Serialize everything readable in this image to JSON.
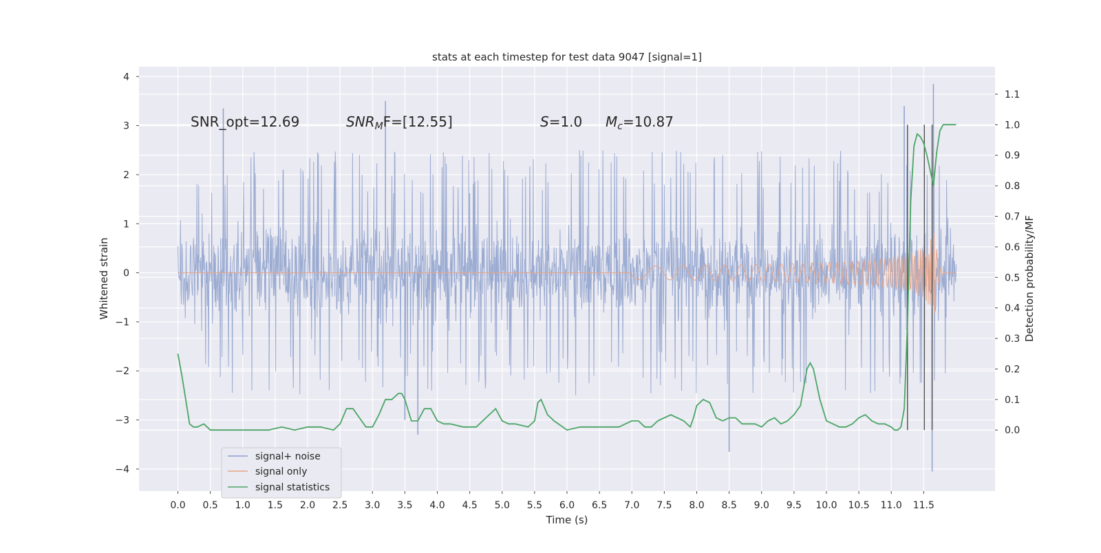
{
  "chart_data": {
    "type": "line",
    "title": "stats at each timestep for test data 9047 [signal=1]",
    "xlabel": "Time (s)",
    "ylabel": "Whitened strain",
    "ylabel_right": "Detection probability/MF",
    "xlim": [
      -0.6,
      12.6
    ],
    "ylim": [
      -4.45,
      4.2
    ],
    "ylim_right": [
      -0.2,
      1.19
    ],
    "x_ticks": [
      "0.0",
      "0.5",
      "1.0",
      "1.5",
      "2.0",
      "2.5",
      "3.0",
      "3.5",
      "4.0",
      "4.5",
      "5.0",
      "5.5",
      "6.0",
      "6.5",
      "7.0",
      "7.5",
      "8.0",
      "8.5",
      "9.0",
      "9.5",
      "10.0",
      "10.5",
      "11.0",
      "11.5"
    ],
    "y_ticks": [
      "4",
      "3",
      "2",
      "1",
      "0",
      "−1",
      "−2",
      "−3",
      "−4"
    ],
    "y_ticks_right": [
      "1.1",
      "1.0",
      "0.9",
      "0.8",
      "0.7",
      "0.6",
      "0.5",
      "0.4",
      "0.3",
      "0.2",
      "0.1",
      "0.0"
    ],
    "grid": true,
    "legend_position": "lower-left",
    "annotations": {
      "snr_opt": "SNR_opt=12.69",
      "snr_mf_sym": "SNR",
      "snr_mf_sub": "M",
      "snr_mf_tail": "F=[12.55]",
      "s_sym": "S",
      "s_value": "=1.0",
      "mc_sym": "M",
      "mc_sub": "c",
      "mc_value": "=10.87"
    },
    "vertical_markers": [
      11.25,
      11.51,
      11.63
    ],
    "series": [
      {
        "name": "signal+ noise",
        "color": "#8da0cb",
        "envelope": {
          "t_start": 0.0,
          "t_end": 12.0,
          "typical_band": [
            -1.9,
            2.2
          ],
          "extreme_peaks": [
            {
              "t": 0.7,
              "y": 3.35
            },
            {
              "t": 3.2,
              "y": 3.5
            },
            {
              "t": 3.5,
              "y": -3.0
            },
            {
              "t": 3.7,
              "y": -3.3
            },
            {
              "t": 8.5,
              "y": -3.65
            },
            {
              "t": 11.2,
              "y": 3.4
            },
            {
              "t": 11.65,
              "y": 3.85
            },
            {
              "t": 11.63,
              "y": -4.05
            }
          ]
        }
      },
      {
        "name": "signal only",
        "color": "#e8a488",
        "chirp": {
          "t_start": 7.0,
          "t_merger": 11.67,
          "peak_amplitude": 1.05
        }
      },
      {
        "name": "signal statistics",
        "color": "#4aa564",
        "axis": "right",
        "x": [
          0.0,
          0.06,
          0.12,
          0.18,
          0.24,
          0.3,
          0.4,
          0.5,
          0.6,
          0.8,
          1.0,
          1.2,
          1.4,
          1.6,
          1.8,
          2.0,
          2.2,
          2.4,
          2.5,
          2.6,
          2.7,
          2.8,
          2.9,
          3.0,
          3.1,
          3.2,
          3.3,
          3.4,
          3.45,
          3.5,
          3.6,
          3.7,
          3.8,
          3.9,
          4.0,
          4.1,
          4.2,
          4.4,
          4.6,
          4.8,
          4.9,
          5.0,
          5.1,
          5.2,
          5.4,
          5.5,
          5.55,
          5.6,
          5.7,
          5.8,
          6.0,
          6.2,
          6.4,
          6.6,
          6.8,
          6.9,
          7.0,
          7.1,
          7.2,
          7.3,
          7.4,
          7.6,
          7.8,
          7.9,
          7.95,
          8.0,
          8.1,
          8.2,
          8.3,
          8.4,
          8.5,
          8.6,
          8.7,
          8.8,
          8.9,
          9.0,
          9.1,
          9.2,
          9.3,
          9.4,
          9.5,
          9.6,
          9.7,
          9.75,
          9.8,
          9.9,
          10.0,
          10.1,
          10.2,
          10.3,
          10.4,
          10.5,
          10.6,
          10.7,
          10.8,
          10.9,
          11.0,
          11.05,
          11.1,
          11.15,
          11.2,
          11.25,
          11.3,
          11.35,
          11.4,
          11.45,
          11.5,
          11.55,
          11.6,
          11.65,
          11.7,
          11.75,
          11.8,
          11.9,
          12.0
        ],
        "values": [
          0.25,
          0.18,
          0.1,
          0.02,
          0.01,
          0.01,
          0.02,
          0.0,
          0.0,
          0.0,
          0.0,
          0.0,
          0.0,
          0.01,
          0.0,
          0.01,
          0.01,
          0.0,
          0.02,
          0.07,
          0.07,
          0.04,
          0.01,
          0.01,
          0.05,
          0.1,
          0.1,
          0.12,
          0.12,
          0.1,
          0.03,
          0.03,
          0.07,
          0.07,
          0.03,
          0.02,
          0.02,
          0.01,
          0.01,
          0.05,
          0.07,
          0.03,
          0.02,
          0.02,
          0.01,
          0.03,
          0.09,
          0.1,
          0.05,
          0.03,
          0.0,
          0.01,
          0.01,
          0.01,
          0.01,
          0.02,
          0.03,
          0.03,
          0.01,
          0.01,
          0.03,
          0.05,
          0.03,
          0.01,
          0.04,
          0.08,
          0.1,
          0.09,
          0.04,
          0.03,
          0.04,
          0.04,
          0.02,
          0.02,
          0.02,
          0.01,
          0.03,
          0.04,
          0.02,
          0.03,
          0.05,
          0.08,
          0.2,
          0.22,
          0.2,
          0.1,
          0.03,
          0.02,
          0.01,
          0.01,
          0.02,
          0.04,
          0.05,
          0.03,
          0.02,
          0.02,
          0.01,
          0.0,
          0.0,
          0.01,
          0.07,
          0.35,
          0.75,
          0.93,
          0.97,
          0.96,
          0.94,
          0.9,
          0.85,
          0.8,
          0.91,
          0.98,
          1.0,
          1.0,
          1.0
        ]
      }
    ]
  }
}
